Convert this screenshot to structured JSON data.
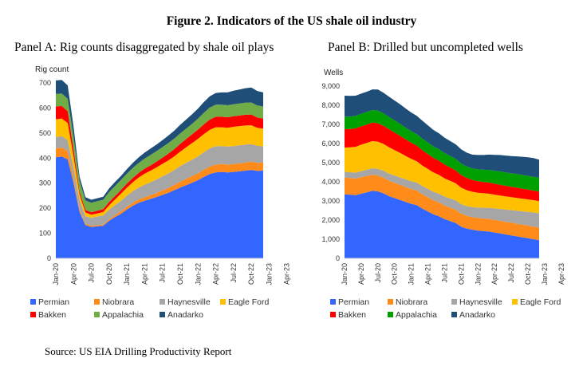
{
  "figure_title": "Figure 2. Indicators of the US shale oil industry",
  "panel_a_title": "Panel A: Rig counts disaggregated by shale oil plays",
  "panel_b_title": "Panel B: Drilled but uncompleted wells",
  "source": "Source: US EIA Drilling Productivity Report",
  "colors": {
    "Permian": "#3366ff",
    "Niobrara": "#ff8c1a",
    "Haynesville": "#a6a6a6",
    "Eagle Ford": "#ffc000",
    "Bakken": "#ff0000",
    "Appalachia": "#70ad47",
    "Anadarko": "#1f4e79",
    "Appalachia_panelB": "#00a000"
  },
  "chart_data": [
    {
      "type": "area",
      "stacked": true,
      "ylabel": "Rig count",
      "ylim": [
        0,
        700
      ],
      "yticks": [
        "0",
        "100",
        "200",
        "300",
        "400",
        "500",
        "600",
        "700"
      ],
      "xlabels": [
        "Jan-20",
        "Apr-20",
        "Jul-20",
        "Oct-20",
        "Jan-21",
        "Apr-21",
        "Jul-21",
        "Oct-21",
        "Jan-22",
        "Apr-22",
        "Jul-22",
        "Oct-22",
        "Jan-23",
        "Apr-23"
      ],
      "x_start_month": "2020-01",
      "grid": false,
      "legend_position": "bottom",
      "series": [
        {
          "name": "Permian",
          "values": [
            403,
            406,
            395,
            300,
            185,
            133,
            125,
            128,
            130,
            150,
            165,
            178,
            195,
            210,
            222,
            230,
            237,
            245,
            253,
            262,
            272,
            283,
            292,
            302,
            312,
            325,
            337,
            343,
            345,
            343,
            345,
            347,
            350,
            353,
            349,
            350
          ]
        },
        {
          "name": "Niobrara",
          "values": [
            36,
            36,
            33,
            20,
            10,
            5,
            5,
            5,
            5,
            6,
            8,
            10,
            11,
            12,
            13,
            14,
            15,
            16,
            18,
            19,
            21,
            23,
            25,
            26,
            27,
            29,
            30,
            31,
            31,
            31,
            31,
            32,
            32,
            33,
            32,
            32
          ]
        },
        {
          "name": "Haynesville",
          "values": [
            45,
            45,
            44,
            40,
            38,
            30,
            32,
            34,
            36,
            38,
            40,
            42,
            44,
            46,
            48,
            50,
            52,
            54,
            56,
            58,
            60,
            62,
            64,
            66,
            68,
            70,
            72,
            74,
            72,
            72,
            72,
            72,
            72,
            70,
            68,
            66
          ]
        },
        {
          "name": "Eagle Ford",
          "values": [
            71,
            71,
            68,
            45,
            22,
            15,
            12,
            12,
            14,
            18,
            22,
            28,
            32,
            36,
            40,
            44,
            46,
            48,
            50,
            52,
            54,
            58,
            62,
            66,
            70,
            72,
            74,
            75,
            75,
            75,
            77,
            77,
            76,
            75,
            72,
            70
          ]
        },
        {
          "name": "Bakken",
          "values": [
            51,
            50,
            47,
            28,
            12,
            10,
            10,
            11,
            11,
            13,
            14,
            15,
            16,
            17,
            18,
            20,
            21,
            23,
            25,
            27,
            29,
            31,
            33,
            35,
            37,
            39,
            41,
            42,
            42,
            42,
            42,
            42,
            43,
            43,
            41,
            40
          ]
        },
        {
          "name": "Appalachia",
          "values": [
            50,
            50,
            50,
            50,
            42,
            38,
            38,
            38,
            38,
            40,
            40,
            40,
            40,
            40,
            40,
            40,
            42,
            42,
            42,
            42,
            42,
            42,
            42,
            42,
            44,
            46,
            48,
            48,
            48,
            48,
            48,
            48,
            48,
            48,
            48,
            48
          ]
        },
        {
          "name": "Anadarko",
          "values": [
            54,
            54,
            53,
            40,
            18,
            13,
            12,
            12,
            12,
            14,
            16,
            16,
            18,
            20,
            22,
            24,
            25,
            26,
            28,
            30,
            32,
            34,
            36,
            38,
            40,
            43,
            45,
            47,
            49,
            51,
            54,
            56,
            58,
            60,
            58,
            56
          ]
        }
      ]
    },
    {
      "type": "area",
      "stacked": true,
      "ylabel": "Wells",
      "ylim": [
        0,
        9000
      ],
      "yticks": [
        "0",
        "1,000",
        "2,000",
        "3,000",
        "4,000",
        "5,000",
        "6,000",
        "7,000",
        "8,000",
        "9,000"
      ],
      "xlabels": [
        "Jan-20",
        "Apr-20",
        "Jul-20",
        "Oct-20",
        "Jan-21",
        "Apr-21",
        "Jul-21",
        "Oct-21",
        "Jan-22",
        "Apr-22",
        "Jul-22",
        "Oct-22",
        "Jan-23",
        "Apr-23"
      ],
      "x_start_month": "2020-01",
      "grid": false,
      "legend_position": "bottom",
      "series": [
        {
          "name": "Permian",
          "values": [
            3350,
            3330,
            3300,
            3380,
            3450,
            3530,
            3500,
            3400,
            3250,
            3150,
            3050,
            2950,
            2850,
            2780,
            2600,
            2450,
            2300,
            2200,
            2050,
            1950,
            1850,
            1650,
            1550,
            1500,
            1450,
            1420,
            1400,
            1350,
            1300,
            1250,
            1200,
            1150,
            1100,
            1050,
            1000,
            950
          ]
        },
        {
          "name": "Niobrara",
          "values": [
            870,
            870,
            870,
            860,
            850,
            840,
            830,
            820,
            810,
            800,
            790,
            780,
            770,
            760,
            750,
            740,
            730,
            720,
            710,
            700,
            690,
            680,
            670,
            660,
            660,
            660,
            660,
            660,
            660,
            660,
            660,
            660,
            660,
            660,
            660,
            660
          ]
        },
        {
          "name": "Haynesville",
          "values": [
            300,
            300,
            310,
            320,
            330,
            340,
            350,
            360,
            370,
            380,
            390,
            400,
            410,
            420,
            430,
            440,
            450,
            460,
            470,
            480,
            490,
            500,
            510,
            520,
            540,
            560,
            580,
            600,
            620,
            640,
            660,
            680,
            700,
            720,
            740,
            740
          ]
        },
        {
          "name": "Eagle Ford",
          "values": [
            1270,
            1300,
            1350,
            1380,
            1400,
            1420,
            1420,
            1400,
            1380,
            1330,
            1280,
            1220,
            1170,
            1110,
            1070,
            1040,
            1010,
            980,
            950,
            920,
            890,
            860,
            830,
            800,
            780,
            760,
            740,
            720,
            700,
            690,
            680,
            670,
            660,
            650,
            640,
            640
          ]
        },
        {
          "name": "Bakken",
          "values": [
            960,
            960,
            960,
            960,
            960,
            960,
            960,
            950,
            940,
            920,
            900,
            870,
            840,
            820,
            800,
            780,
            760,
            740,
            720,
            700,
            680,
            660,
            640,
            620,
            600,
            590,
            580,
            570,
            560,
            550,
            540,
            530,
            520,
            510,
            500,
            500
          ]
        },
        {
          "name": "Appalachia",
          "values": [
            650,
            650,
            650,
            660,
            660,
            660,
            660,
            650,
            640,
            630,
            620,
            610,
            600,
            600,
            600,
            600,
            600,
            600,
            600,
            600,
            600,
            600,
            600,
            600,
            620,
            640,
            660,
            680,
            700,
            700,
            700,
            720,
            720,
            720,
            720,
            720
          ]
        },
        {
          "name": "Anadarko",
          "values": [
            1100,
            1080,
            1060,
            1050,
            1060,
            1080,
            1100,
            1080,
            1060,
            1040,
            1020,
            1000,
            980,
            960,
            940,
            900,
            860,
            830,
            800,
            780,
            760,
            740,
            720,
            720,
            750,
            770,
            800,
            830,
            860,
            880,
            900,
            920,
            950,
            970,
            980,
            950
          ]
        }
      ]
    }
  ]
}
